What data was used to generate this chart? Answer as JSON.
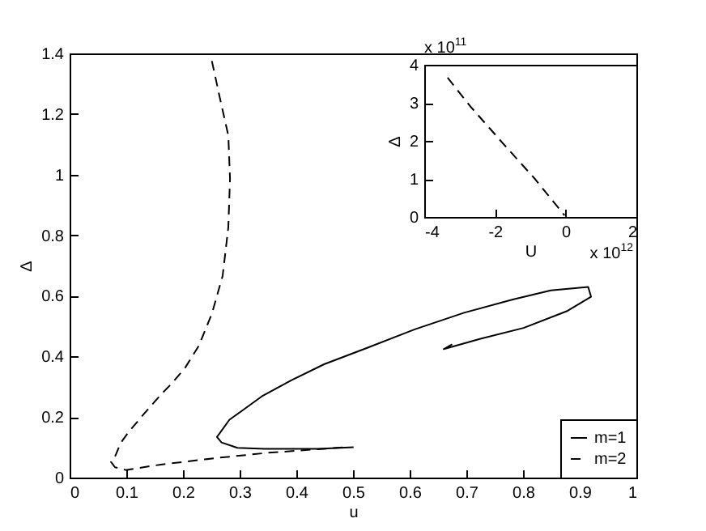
{
  "chart_data": [
    {
      "type": "line",
      "xlabel": "u",
      "ylabel": "Δ",
      "xlim": [
        0,
        1
      ],
      "ylim": [
        0,
        1.4
      ],
      "xticks": [
        0,
        0.1,
        0.2,
        0.3,
        0.4,
        0.5,
        0.6,
        0.7,
        0.8,
        0.9,
        1
      ],
      "yticks": [
        0,
        0.2,
        0.4,
        0.6,
        0.8,
        1,
        1.2,
        1.4
      ],
      "grid": false,
      "legend": "bottom right",
      "marker": "none",
      "series": [
        {
          "name": "m=1",
          "color": "#000000",
          "line_style": "solid",
          "x": [
            0.501,
            0.439,
            0.344,
            0.296,
            0.268,
            0.26,
            0.282,
            0.306,
            0.339,
            0.391,
            0.449,
            0.525,
            0.61,
            0.696,
            0.782,
            0.849,
            0.915,
            0.92,
            0.877,
            0.801,
            0.725,
            0.668,
            0.66,
            0.675
          ],
          "values": [
            0.1,
            0.095,
            0.095,
            0.098,
            0.116,
            0.134,
            0.191,
            0.223,
            0.268,
            0.321,
            0.374,
            0.428,
            0.49,
            0.544,
            0.588,
            0.618,
            0.629,
            0.597,
            0.549,
            0.494,
            0.458,
            0.428,
            0.424,
            0.44
          ]
        },
        {
          "name": "m=2",
          "color": "#000000",
          "line_style": "dashed",
          "x": [
            0.251,
            0.265,
            0.28,
            0.283,
            0.28,
            0.27,
            0.251,
            0.228,
            0.204,
            0.18,
            0.161,
            0.132,
            0.104,
            0.09,
            0.08,
            0.073,
            0.08,
            0.099,
            0.161,
            0.256,
            0.351,
            0.485
          ],
          "values": [
            1.375,
            1.254,
            1.129,
            0.987,
            0.826,
            0.666,
            0.541,
            0.435,
            0.363,
            0.31,
            0.274,
            0.212,
            0.15,
            0.114,
            0.069,
            0.052,
            0.034,
            0.025,
            0.043,
            0.064,
            0.082,
            0.1
          ]
        }
      ]
    },
    {
      "type": "line",
      "xlabel": "U",
      "ylabel": "Δ",
      "xlim": [
        -4,
        2
      ],
      "ylim": [
        0,
        4
      ],
      "xticks": [
        -4,
        -2,
        0,
        2
      ],
      "yticks": [
        0,
        1,
        2,
        3,
        4
      ],
      "annotations": [
        "x 10$^{11}$",
        "x 10$^{12}$"
      ],
      "grid": false,
      "marker": "none",
      "series": [
        {
          "color": "#000000",
          "line_style": "dashed",
          "x": [
            -3.34,
            -2.7,
            -1.79,
            -0.87,
            -0.03
          ],
          "values": [
            3.66,
            2.91,
            1.95,
            1.0,
            0.04
          ]
        }
      ]
    }
  ]
}
